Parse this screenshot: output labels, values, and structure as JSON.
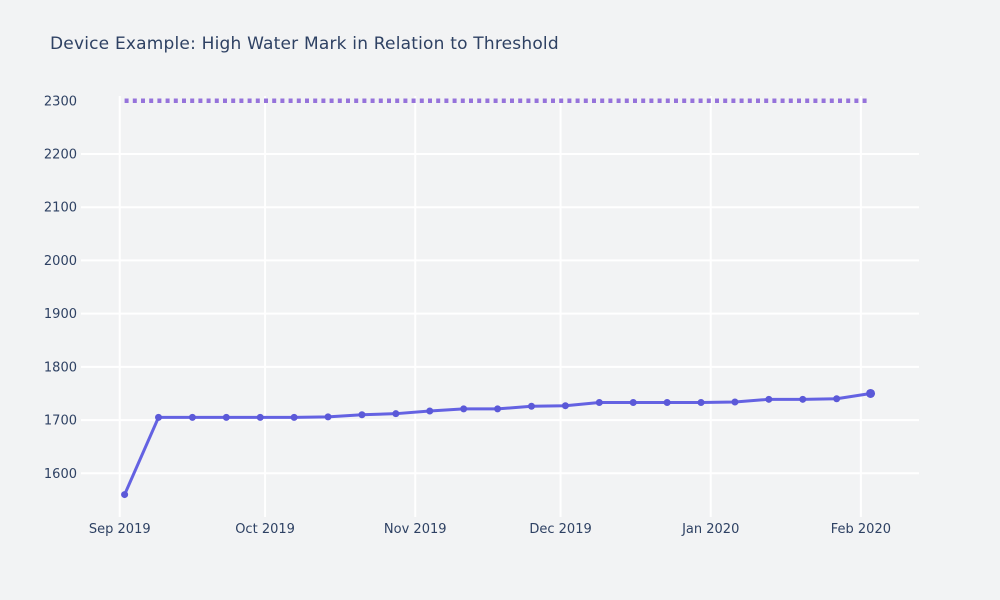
{
  "chart_data": {
    "type": "line",
    "title": "Device Example: High Water Mark in Relation to Threshold",
    "x": [
      "2019-09-02",
      "2019-09-09",
      "2019-09-16",
      "2019-09-23",
      "2019-09-30",
      "2019-10-07",
      "2019-10-14",
      "2019-10-21",
      "2019-10-28",
      "2019-11-04",
      "2019-11-11",
      "2019-11-18",
      "2019-11-25",
      "2019-12-02",
      "2019-12-09",
      "2019-12-16",
      "2019-12-23",
      "2019-12-30",
      "2020-01-06",
      "2020-01-13",
      "2020-01-20",
      "2020-01-27",
      "2020-02-03"
    ],
    "series": [
      {
        "name": "high-water-mark",
        "values": [
          1560,
          1705,
          1705,
          1705,
          1705,
          1705,
          1706,
          1710,
          1712,
          1717,
          1721,
          1721,
          1726,
          1727,
          1733,
          1733,
          1733,
          1733,
          1734,
          1739,
          1739,
          1740,
          1750
        ],
        "color": "#6462e2",
        "marker_color": "#5b59d8"
      }
    ],
    "threshold": {
      "value": 2300,
      "color": "#9673db",
      "style": "dotted"
    },
    "x_ticks": [
      {
        "date": "2019-09-01",
        "label": "Sep 2019"
      },
      {
        "date": "2019-10-01",
        "label": "Oct 2019"
      },
      {
        "date": "2019-11-01",
        "label": "Nov 2019"
      },
      {
        "date": "2019-12-01",
        "label": "Dec 2019"
      },
      {
        "date": "2020-01-01",
        "label": "Jan 2020"
      },
      {
        "date": "2020-02-01",
        "label": "Feb 2020"
      }
    ],
    "y_ticks": [
      1600,
      1700,
      1800,
      1900,
      2000,
      2100,
      2200,
      2300
    ],
    "ylim": [
      1531,
      2309
    ],
    "xlim": [
      "2019-08-24",
      "2020-02-13"
    ],
    "grid": true,
    "legend": "none",
    "colors": {
      "background": "#f2f3f4",
      "grid": "#ffffff",
      "text": "#2e4163"
    }
  }
}
